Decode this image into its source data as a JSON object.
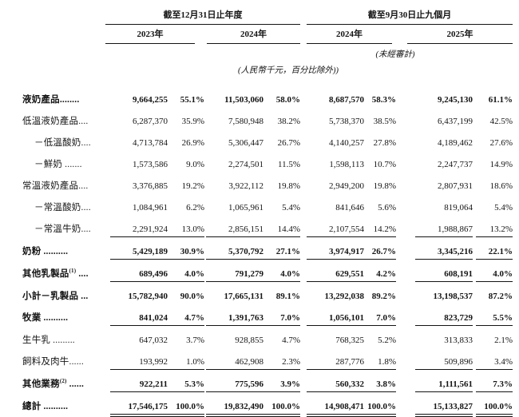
{
  "page": {
    "background": "#ffffff",
    "text_color": "#141414"
  },
  "header": {
    "period_groups": [
      {
        "title": "截至12月31日止年度",
        "years": [
          "2023年",
          "2024年"
        ]
      },
      {
        "title": "截至9月30日止九個月",
        "years": [
          "2024年",
          "2025年"
        ]
      }
    ],
    "unaudited_note": "(未經審計)",
    "currency_note": "(人民幣千元，百分比除外))"
  },
  "table": {
    "column_structure": [
      "金額",
      "百分比",
      "金額",
      "百分比",
      "金額",
      "百分比",
      "金額",
      "百分比"
    ],
    "rows": [
      {
        "label": "液奶產品",
        "sup": "",
        "dots": "........",
        "indent": false,
        "bold": true,
        "rule": "none",
        "cells": [
          "9,664,255",
          "55.1%",
          "11,503,060",
          "58.0%",
          "8,687,570",
          "58.3%",
          "9,245,130",
          "61.1%"
        ]
      },
      {
        "label": "低溫液奶產品",
        "sup": "",
        "dots": "....",
        "indent": false,
        "bold": false,
        "rule": "none",
        "cells": [
          "6,287,370",
          "35.9%",
          "7,580,948",
          "38.2%",
          "5,738,370",
          "38.5%",
          "6,437,199",
          "42.5%"
        ]
      },
      {
        "label": "－低溫酸奶",
        "sup": "",
        "dots": "....",
        "indent": true,
        "bold": false,
        "rule": "none",
        "cells": [
          "4,713,784",
          "26.9%",
          "5,306,447",
          "26.7%",
          "4,140,257",
          "27.8%",
          "4,189,462",
          "27.6%"
        ]
      },
      {
        "label": "－鮮奶",
        "sup": "",
        "dots": " .......",
        "indent": true,
        "bold": false,
        "rule": "none",
        "cells": [
          "1,573,586",
          "9.0%",
          "2,274,501",
          "11.5%",
          "1,598,113",
          "10.7%",
          "2,247,737",
          "14.9%"
        ]
      },
      {
        "label": "常溫液奶產品",
        "sup": "",
        "dots": "....",
        "indent": false,
        "bold": false,
        "rule": "none",
        "cells": [
          "3,376,885",
          "19.2%",
          "3,922,112",
          "19.8%",
          "2,949,200",
          "19.8%",
          "2,807,931",
          "18.6%"
        ]
      },
      {
        "label": "－常溫酸奶",
        "sup": "",
        "dots": "....",
        "indent": true,
        "bold": false,
        "rule": "none",
        "cells": [
          "1,084,961",
          "6.2%",
          "1,065,961",
          "5.4%",
          "841,646",
          "5.6%",
          "819,064",
          "5.4%"
        ]
      },
      {
        "label": "－常溫牛奶",
        "sup": "",
        "dots": "....",
        "indent": true,
        "bold": false,
        "rule": "single",
        "cells": [
          "2,291,924",
          "13.0%",
          "2,856,151",
          "14.4%",
          "2,107,554",
          "14.2%",
          "1,988,867",
          "13.2%"
        ]
      },
      {
        "label": "奶粉",
        "sup": "",
        "dots": " ..........",
        "indent": false,
        "bold": true,
        "rule": "single",
        "cells": [
          "5,429,189",
          "30.9%",
          "5,370,792",
          "27.1%",
          "3,974,917",
          "26.7%",
          "3,345,216",
          "22.1%"
        ]
      },
      {
        "label": "其他乳製品",
        "sup": "(1)",
        "dots": " ....",
        "indent": false,
        "bold": true,
        "rule": "single",
        "cells": [
          "689,496",
          "4.0%",
          "791,279",
          "4.0%",
          "629,551",
          "4.2%",
          "608,191",
          "4.0%"
        ]
      },
      {
        "label": "小計－乳製品",
        "sup": "",
        "dots": " ...",
        "indent": false,
        "bold": true,
        "rule": "none",
        "cells": [
          "15,782,940",
          "90.0%",
          "17,665,131",
          "89.1%",
          "13,292,038",
          "89.2%",
          "13,198,537",
          "87.2%"
        ]
      },
      {
        "label": "牧業",
        "sup": "",
        "dots": " ..........",
        "indent": false,
        "bold": true,
        "rule": "single",
        "cells": [
          "841,024",
          "4.7%",
          "1,391,763",
          "7.0%",
          "1,056,101",
          "7.0%",
          "823,729",
          "5.5%"
        ]
      },
      {
        "label": "生牛乳",
        "sup": "",
        "dots": " .........",
        "indent": false,
        "bold": false,
        "rule": "none",
        "cells": [
          "647,032",
          "3.7%",
          "928,855",
          "4.7%",
          "768,325",
          "5.2%",
          "313,833",
          "2.1%"
        ]
      },
      {
        "label": "飼料及肉牛",
        "sup": "",
        "dots": "......",
        "indent": false,
        "bold": false,
        "rule": "single",
        "cells": [
          "193,992",
          "1.0%",
          "462,908",
          "2.3%",
          "287,776",
          "1.8%",
          "509,896",
          "3.4%"
        ]
      },
      {
        "label": "其他業務",
        "sup": "(2)",
        "dots": " ......",
        "indent": false,
        "bold": true,
        "rule": "single",
        "cells": [
          "922,211",
          "5.3%",
          "775,596",
          "3.9%",
          "560,332",
          "3.8%",
          "1,111,561",
          "7.3%"
        ]
      },
      {
        "label": "總計",
        "sup": "",
        "dots": " ..........",
        "indent": false,
        "bold": true,
        "rule": "double",
        "cells": [
          "17,546,175",
          "100.0%",
          "19,832,490",
          "100.0%",
          "14,908,471",
          "100.0%",
          "15,133,827",
          "100.0%"
        ]
      }
    ]
  }
}
